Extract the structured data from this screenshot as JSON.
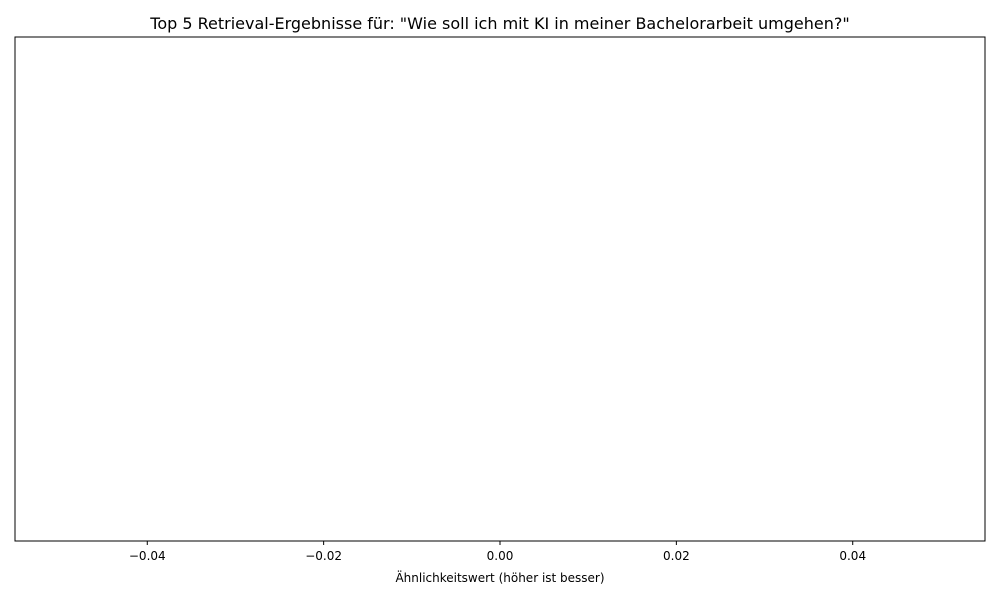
{
  "chart_data": {
    "type": "bar",
    "orientation": "horizontal",
    "title": "Top 5 Retrieval-Ergebnisse für: \"Wie soll ich mit KI in meiner Bachelorarbeit umgehen?\"",
    "xlabel": "Ähnlichkeitswert (höher ist besser)",
    "ylabel": "",
    "categories": [],
    "values": [],
    "xlim": [
      -0.055,
      0.055
    ],
    "xticks": [
      -0.04,
      -0.02,
      0.0,
      0.02,
      0.04
    ],
    "xtick_labels": [
      "−0.04",
      "−0.02",
      "0.00",
      "0.02",
      "0.04"
    ],
    "yticks": [],
    "grid": false,
    "legend": "none"
  }
}
